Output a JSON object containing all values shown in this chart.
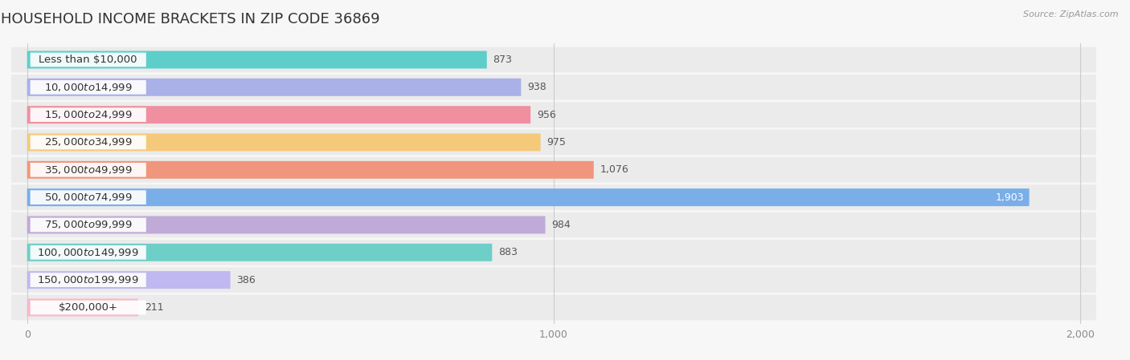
{
  "title": "HOUSEHOLD INCOME BRACKETS IN ZIP CODE 36869",
  "source": "Source: ZipAtlas.com",
  "categories": [
    "Less than $10,000",
    "$10,000 to $14,999",
    "$15,000 to $24,999",
    "$25,000 to $34,999",
    "$35,000 to $49,999",
    "$50,000 to $74,999",
    "$75,000 to $99,999",
    "$100,000 to $149,999",
    "$150,000 to $199,999",
    "$200,000+"
  ],
  "values": [
    873,
    938,
    956,
    975,
    1076,
    1903,
    984,
    883,
    386,
    211
  ],
  "bar_colors": [
    "#5ececa",
    "#aab0e8",
    "#f08fa0",
    "#f5c97a",
    "#f0967d",
    "#7aaee8",
    "#c0aad8",
    "#6ecec8",
    "#c0b8f0",
    "#f8b8c8"
  ],
  "value_inside": [
    false,
    false,
    false,
    false,
    false,
    true,
    false,
    false,
    false,
    false
  ],
  "xlim": [
    0,
    2000
  ],
  "xticks": [
    0,
    1000,
    2000
  ],
  "background_color": "#f7f7f7",
  "row_bg_color": "#ebebeb",
  "title_fontsize": 13,
  "label_fontsize": 9.5,
  "value_fontsize": 9
}
